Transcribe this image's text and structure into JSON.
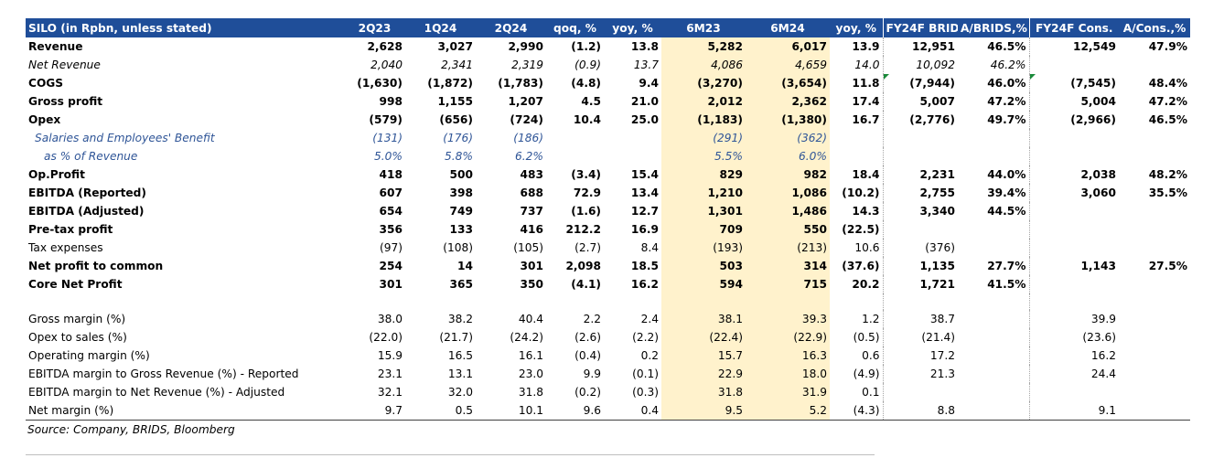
{
  "table": {
    "headers": [
      "SILO (in Rpbn, unless stated)",
      "2Q23",
      "1Q24",
      "2Q24",
      "qoq, %",
      "yoy, %",
      "6M23",
      "6M24",
      "yoy, %",
      "FY24F BRIDS",
      "A/BRIDS,%",
      "FY24F Cons.",
      "A/Cons.,%"
    ],
    "rows": [
      {
        "label": "Revenue",
        "values": [
          "2,628",
          "3,027",
          "2,990",
          "(1.2)",
          "13.8",
          "5,282",
          "6,017",
          "13.9",
          "12,951",
          "46.5%",
          "12,549",
          "47.9%"
        ]
      },
      {
        "label": "Net Revenue",
        "values": [
          "2,040",
          "2,341",
          "2,319",
          "(0.9)",
          "13.7",
          "4,086",
          "4,659",
          "14.0",
          "10,092",
          "46.2%",
          "",
          ""
        ]
      },
      {
        "label": "COGS",
        "values": [
          "(1,630)",
          "(1,872)",
          "(1,783)",
          "(4.8)",
          "9.4",
          "(3,270)",
          "(3,654)",
          "11.8",
          "(7,944)",
          "46.0%",
          "(7,545)",
          "48.4%"
        ]
      },
      {
        "label": "Gross profit",
        "values": [
          "998",
          "1,155",
          "1,207",
          "4.5",
          "21.0",
          "2,012",
          "2,362",
          "17.4",
          "5,007",
          "47.2%",
          "5,004",
          "47.2%"
        ]
      },
      {
        "label": "Opex",
        "values": [
          "(579)",
          "(656)",
          "(724)",
          "10.4",
          "25.0",
          "(1,183)",
          "(1,380)",
          "16.7",
          "(2,776)",
          "49.7%",
          "(2,966)",
          "46.5%"
        ]
      },
      {
        "label": "Salaries and Employees' Benefit",
        "values": [
          "(131)",
          "(176)",
          "(186)",
          "",
          "",
          "(291)",
          "(362)",
          "",
          "",
          "",
          "",
          ""
        ]
      },
      {
        "label": "as % of Revenue",
        "values": [
          "5.0%",
          "5.8%",
          "6.2%",
          "",
          "",
          "5.5%",
          "6.0%",
          "",
          "",
          "",
          "",
          ""
        ]
      },
      {
        "label": "Op.Profit",
        "values": [
          "418",
          "500",
          "483",
          "(3.4)",
          "15.4",
          "829",
          "982",
          "18.4",
          "2,231",
          "44.0%",
          "2,038",
          "48.2%"
        ]
      },
      {
        "label": "EBITDA (Reported)",
        "values": [
          "607",
          "398",
          "688",
          "72.9",
          "13.4",
          "1,210",
          "1,086",
          "(10.2)",
          "2,755",
          "39.4%",
          "3,060",
          "35.5%"
        ]
      },
      {
        "label": "EBITDA (Adjusted)",
        "values": [
          "654",
          "749",
          "737",
          "(1.6)",
          "12.7",
          "1,301",
          "1,486",
          "14.3",
          "3,340",
          "44.5%",
          "",
          ""
        ]
      },
      {
        "label": "Pre-tax profit",
        "values": [
          "356",
          "133",
          "416",
          "212.2",
          "16.9",
          "709",
          "550",
          "(22.5)",
          "",
          "",
          "",
          ""
        ]
      },
      {
        "label": "Tax expenses",
        "values": [
          "(97)",
          "(108)",
          "(105)",
          "(2.7)",
          "8.4",
          "(193)",
          "(213)",
          "10.6",
          "(376)",
          "",
          "",
          ""
        ]
      },
      {
        "label": "Net profit to common",
        "values": [
          "254",
          "14",
          "301",
          "2,098",
          "18.5",
          "503",
          "314",
          "(37.6)",
          "1,135",
          "27.7%",
          "1,143",
          "27.5%"
        ]
      },
      {
        "label": "Core Net Profit",
        "values": [
          "301",
          "365",
          "350",
          "(4.1)",
          "16.2",
          "594",
          "715",
          "20.2",
          "1,721",
          "41.5%",
          "",
          ""
        ]
      },
      {
        "label": "",
        "values": [
          "",
          "",
          "",
          "",
          "",
          "",
          "",
          "",
          "",
          "",
          "",
          ""
        ]
      },
      {
        "label": "Gross margin (%)",
        "values": [
          "38.0",
          "38.2",
          "40.4",
          "2.2",
          "2.4",
          "38.1",
          "39.3",
          "1.2",
          "38.7",
          "",
          "39.9",
          ""
        ]
      },
      {
        "label": "Opex to sales (%)",
        "values": [
          "(22.0)",
          "(21.7)",
          "(24.2)",
          "(2.6)",
          "(2.2)",
          "(22.4)",
          "(22.9)",
          "(0.5)",
          "(21.4)",
          "",
          "(23.6)",
          ""
        ]
      },
      {
        "label": "Operating margin (%)",
        "values": [
          "15.9",
          "16.5",
          "16.1",
          "(0.4)",
          "0.2",
          "15.7",
          "16.3",
          "0.6",
          "17.2",
          "",
          "16.2",
          ""
        ]
      },
      {
        "label": "EBITDA margin to Gross Revenue (%) - Reported",
        "values": [
          "23.1",
          "13.1",
          "23.0",
          "9.9",
          "(0.1)",
          "22.9",
          "18.0",
          "(4.9)",
          "21.3",
          "",
          "24.4",
          ""
        ]
      },
      {
        "label": "EBITDA margin to Net Revenue (%) - Adjusted",
        "values": [
          "32.1",
          "32.0",
          "31.8",
          "(0.2)",
          "(0.3)",
          "31.8",
          "31.9",
          "0.1",
          "",
          "",
          "",
          ""
        ]
      },
      {
        "label": "Net margin (%)",
        "values": [
          "9.7",
          "0.5",
          "10.1",
          "9.6",
          "0.4",
          "9.5",
          "5.2",
          "(4.3)",
          "8.8",
          "",
          "9.1",
          ""
        ]
      }
    ]
  },
  "source": "Source: Company, BRIDS, Bloomberg"
}
